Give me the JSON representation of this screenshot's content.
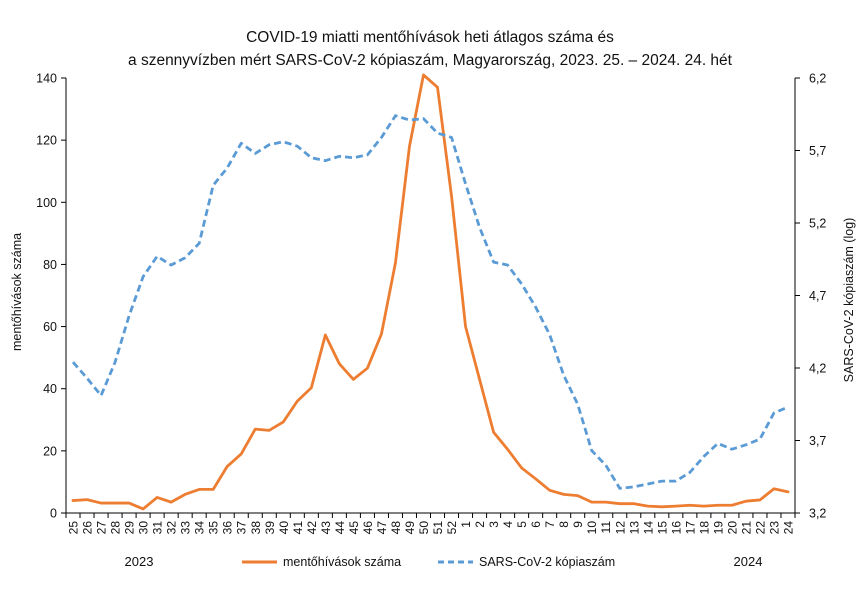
{
  "chart_data": {
    "type": "line",
    "title_line1": "COVID-19 miatti mentőhívások heti átlagos száma és",
    "title_line2": "a szennyvízben mért SARS-CoV-2 kópiaszám, Magyarország, 2023. 25. – 2024. 24. hét",
    "ylabel_left": "mentőhívások száma",
    "ylabel_right": "SARS-CoV-2 kópiaszám (log)",
    "ylim_left": [
      0,
      140
    ],
    "yticks_left": [
      0,
      20,
      40,
      60,
      80,
      100,
      120,
      140
    ],
    "ylim_right": [
      3.2,
      6.2
    ],
    "yticks_right": [
      "3,2",
      "3,7",
      "4,2",
      "4,7",
      "5,2",
      "5,7",
      "6,2"
    ],
    "yticks_right_values": [
      3.2,
      3.7,
      4.2,
      4.7,
      5.2,
      5.7,
      6.2
    ],
    "categories": [
      "25",
      "26",
      "27",
      "28",
      "29",
      "30",
      "31",
      "32",
      "33",
      "34",
      "35",
      "36",
      "37",
      "38",
      "39",
      "40",
      "41",
      "42",
      "43",
      "44",
      "45",
      "46",
      "47",
      "48",
      "49",
      "50",
      "51",
      "52",
      "1",
      "2",
      "3",
      "4",
      "5",
      "6",
      "7",
      "8",
      "9",
      "10",
      "11",
      "12",
      "13",
      "14",
      "15",
      "16",
      "17",
      "18",
      "19",
      "20",
      "21",
      "22",
      "23",
      "24"
    ],
    "years": [
      "2023",
      "2024"
    ],
    "series": [
      {
        "name": "mentőhívások száma",
        "axis": "left",
        "color": "#ED7D31",
        "style": "solid",
        "values": [
          4,
          4.3,
          3.2,
          3.2,
          3.2,
          1.3,
          5,
          3.5,
          6,
          7.6,
          7.6,
          15,
          19,
          27,
          26.6,
          29.3,
          36,
          40.3,
          57.3,
          48,
          43,
          46.6,
          57.6,
          80.5,
          118,
          141,
          137,
          102,
          60,
          43,
          26,
          20.5,
          14.5,
          11,
          7.3,
          6,
          5.6,
          3.5,
          3.5,
          3,
          3,
          2.2,
          2,
          2.2,
          2.5,
          2.2,
          2.5,
          2.5,
          3.8,
          4.2,
          7.8,
          6.8
        ]
      },
      {
        "name": "SARS-CoV-2 kópiaszám",
        "axis": "right",
        "color": "#5B9BD5",
        "style": "dashed",
        "values": [
          4.24,
          4.13,
          4.01,
          4.24,
          4.56,
          4.83,
          4.97,
          4.91,
          4.96,
          5.06,
          5.46,
          5.58,
          5.75,
          5.68,
          5.74,
          5.76,
          5.73,
          5.65,
          5.63,
          5.66,
          5.65,
          5.67,
          5.79,
          5.94,
          5.91,
          5.92,
          5.82,
          5.79,
          5.47,
          5.17,
          4.93,
          4.91,
          4.78,
          4.62,
          4.43,
          4.15,
          3.95,
          3.63,
          3.53,
          3.37,
          3.38,
          3.4,
          3.42,
          3.42,
          3.48,
          3.59,
          3.68,
          3.64,
          3.67,
          3.71,
          3.89,
          3.93
        ]
      }
    ],
    "legend_position": "bottom",
    "grid": false
  }
}
